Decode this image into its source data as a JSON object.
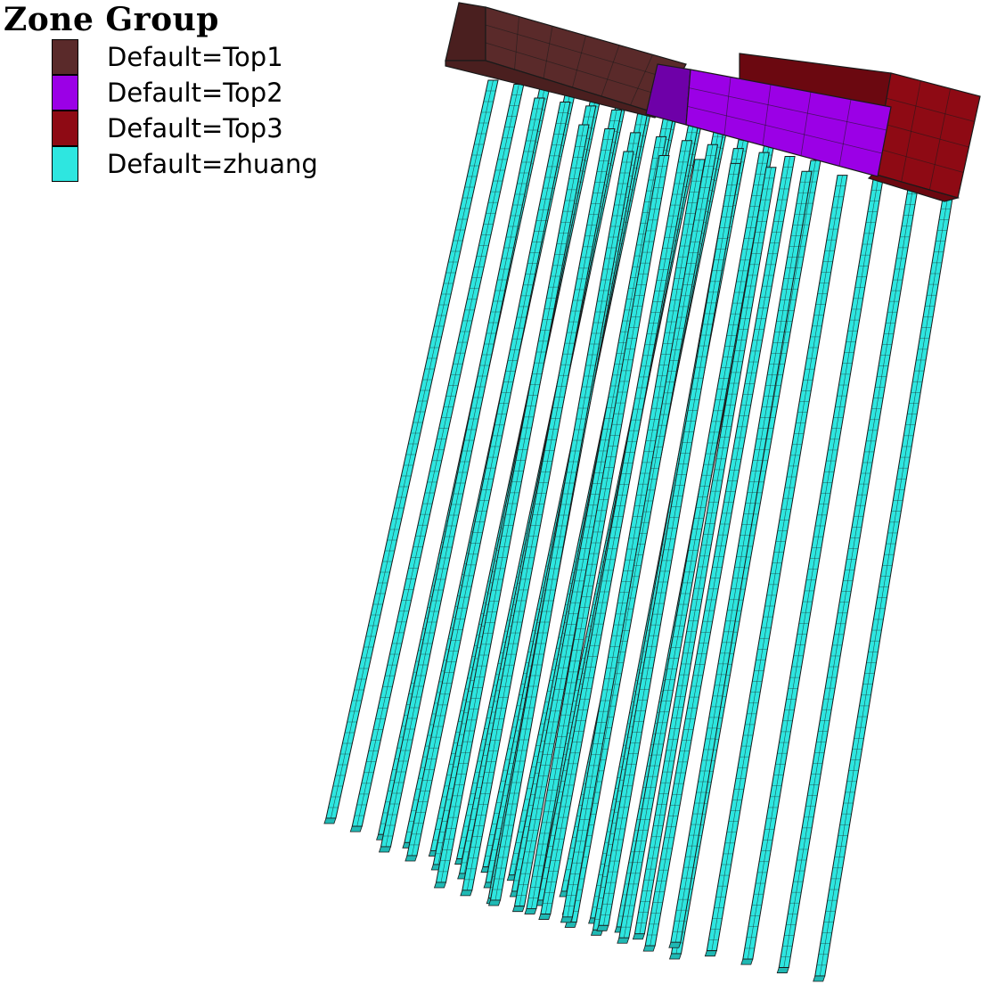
{
  "legend": {
    "title": "Zone Group",
    "items": [
      {
        "label": "Default=Top1",
        "color": "#5a2a2a"
      },
      {
        "label": "Default=Top2",
        "color": "#9b00e6"
      },
      {
        "label": "Default=Top3",
        "color": "#8e0a14"
      },
      {
        "label": "Default=zhuang",
        "color": "#2ee6e0"
      }
    ]
  },
  "colors": {
    "top1_side": "#5a2a2a",
    "top1_face": "#4a1f1f",
    "top2_side": "#9b00e6",
    "top2_face": "#6e00a8",
    "top3_side": "#8e0a14",
    "top3_face": "#6b0810",
    "pile": "#2ee6e0",
    "mesh": "#1a1a1a"
  }
}
